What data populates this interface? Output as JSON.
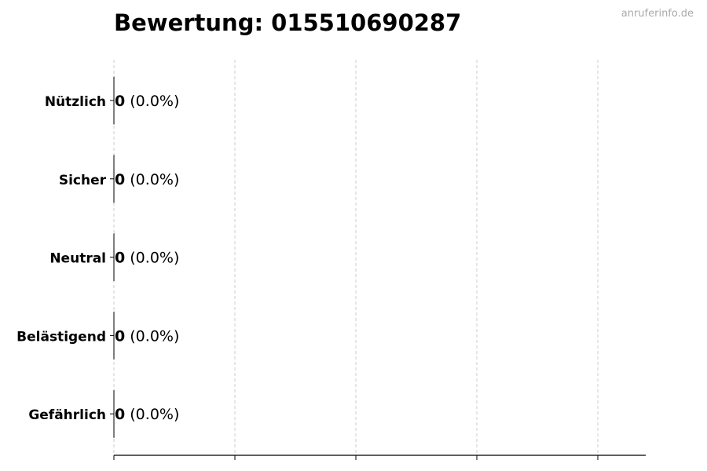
{
  "chart_data": {
    "type": "bar",
    "orientation": "horizontal",
    "title": "Bewertung: 015510690287",
    "watermark": "anruferinfo.de",
    "categories": [
      "Nützlich",
      "Sicher",
      "Neutral",
      "Belästigend",
      "Gefährlich"
    ],
    "values": [
      0,
      0,
      0,
      0,
      0
    ],
    "percent_labels": [
      "(0.0%)",
      "(0.0%)",
      "(0.0%)",
      "(0.0%)",
      "(0.0%)"
    ],
    "xlabel": "",
    "ylabel": "",
    "x_tick_labels_shown": false,
    "grid": "vertical dashed",
    "colors": {
      "bar_edge": "#000000",
      "grid": "#cccccc",
      "text": "#000000"
    }
  }
}
